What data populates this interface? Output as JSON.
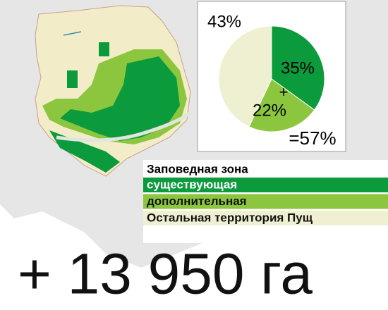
{
  "chart_data": {
    "type": "pie",
    "legend_title": "Заповедная зона",
    "categories": [
      "существующая",
      "дополнительная",
      "Остальная территория Пущ"
    ],
    "values": [
      35,
      22,
      43
    ],
    "value_labels": [
      "35%",
      "22%",
      "43%"
    ],
    "colors": [
      "#0b9a3c",
      "#8cc63e",
      "#efefd2"
    ],
    "annotations": [
      "+",
      "=57%"
    ]
  },
  "footer": "+ 13 950 га"
}
